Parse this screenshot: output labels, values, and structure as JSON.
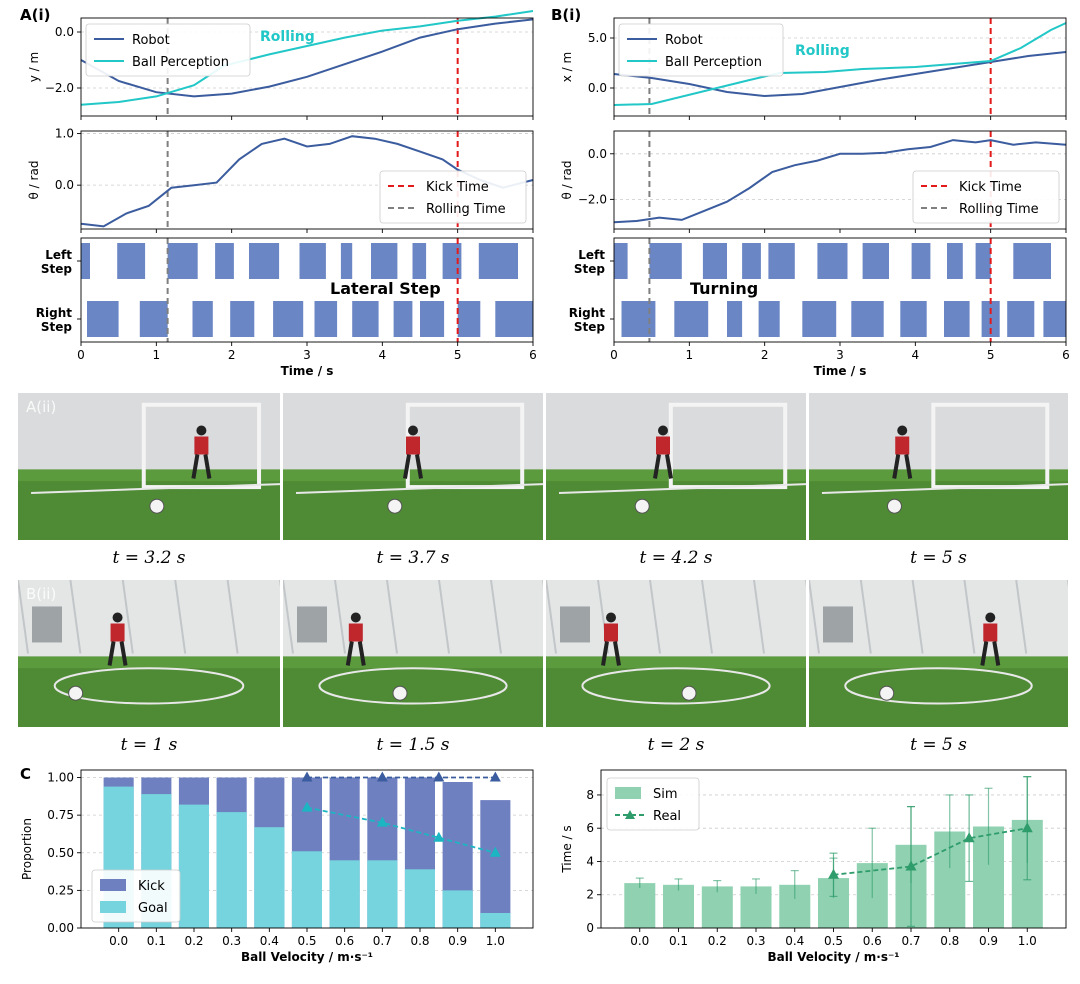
{
  "panels": {
    "a_i": "A(i)",
    "b_i": "B(i)",
    "a_ii": "A(ii)",
    "b_ii": "B(ii)",
    "c": "C"
  },
  "legend": {
    "robot": "Robot",
    "ball": "Ball Perception",
    "kick": "Kick Time",
    "rolling_time": "Rolling Time",
    "rolling_text": "Rolling"
  },
  "colors": {
    "robot": "#3b5c9e",
    "ball": "#22c7c7",
    "kick": "#e31a1c",
    "rolling": "#7f7f7f",
    "step": "#6b86c4",
    "kick_bar": "#6f80c0",
    "goal_bar": "#75d4de",
    "goal_line": "#1cb5c2",
    "kick_line": "#3b5c9e",
    "sim": "#8fd1b1",
    "real": "#2f9c6b"
  },
  "photo_captions": {
    "a": [
      "t = 3.2 s",
      "t = 3.7 s",
      "t = 4.2 s",
      "t = 5 s"
    ],
    "b": [
      "t = 1 s",
      "t = 1.5 s",
      "t = 2 s",
      "t = 5 s"
    ]
  },
  "chart_data": [
    {
      "id": "A_i_top",
      "type": "line",
      "ylabel": "y / m",
      "xlim": [
        0,
        6
      ],
      "ylim": [
        -3.0,
        0.5
      ],
      "yticks": [
        -2.0,
        0.0
      ],
      "ytick_labels": [
        "−2.0",
        "0.0"
      ],
      "annotation": "Rolling",
      "kick_time": 5,
      "rolling_time": 1.15,
      "series": [
        {
          "name": "Robot",
          "x": [
            0,
            0.5,
            1.0,
            1.5,
            2.0,
            2.5,
            3.0,
            3.5,
            4.0,
            4.5,
            5.0,
            5.5,
            6.0
          ],
          "y": [
            -1.0,
            -1.75,
            -2.15,
            -2.3,
            -2.2,
            -1.95,
            -1.6,
            -1.15,
            -0.7,
            -0.2,
            0.1,
            0.3,
            0.45
          ]
        },
        {
          "name": "Ball Perception",
          "x": [
            0,
            0.5,
            1.0,
            1.5,
            1.9,
            2.5,
            3.0,
            3.5,
            4.0,
            4.5,
            5.0,
            5.5,
            6.0
          ],
          "y": [
            -2.6,
            -2.5,
            -2.3,
            -1.9,
            -1.2,
            -0.8,
            -0.5,
            -0.2,
            0.05,
            0.2,
            0.4,
            0.55,
            0.75
          ]
        }
      ]
    },
    {
      "id": "A_i_mid",
      "type": "line",
      "ylabel": "θ / rad",
      "xlim": [
        0,
        6
      ],
      "ylim": [
        -0.85,
        1.05
      ],
      "yticks": [
        0.0,
        1.0
      ],
      "ytick_labels": [
        "0.0",
        "1.0"
      ],
      "kick_time": 5,
      "rolling_time": 1.15,
      "series": [
        {
          "name": "Robot",
          "x": [
            0,
            0.3,
            0.6,
            0.9,
            1.2,
            1.5,
            1.8,
            2.1,
            2.4,
            2.7,
            3.0,
            3.3,
            3.6,
            3.9,
            4.2,
            4.5,
            4.8,
            5.0,
            5.3,
            5.6,
            6.0
          ],
          "y": [
            -0.75,
            -0.8,
            -0.55,
            -0.4,
            -0.05,
            0.0,
            0.05,
            0.5,
            0.8,
            0.9,
            0.75,
            0.8,
            0.95,
            0.9,
            0.8,
            0.65,
            0.5,
            0.3,
            0.1,
            -0.05,
            0.1
          ]
        }
      ]
    },
    {
      "id": "A_i_steps",
      "type": "gantt",
      "rows": [
        "Left Step",
        "Right Step"
      ],
      "annotation": "Lateral Step",
      "xlabel": "Time / s",
      "xlim": [
        0,
        6
      ],
      "xticks": [
        0,
        1,
        2,
        3,
        4,
        5,
        6
      ],
      "kick_time": 5,
      "rolling_time": 1.15,
      "left_intervals": [
        [
          0,
          0.12
        ],
        [
          0.48,
          0.85
        ],
        [
          1.15,
          1.55
        ],
        [
          1.78,
          2.03
        ],
        [
          2.23,
          2.63
        ],
        [
          2.9,
          3.25
        ],
        [
          3.45,
          3.6
        ],
        [
          3.85,
          4.2
        ],
        [
          4.4,
          4.58
        ],
        [
          4.8,
          5.05
        ],
        [
          5.28,
          5.8
        ]
      ],
      "right_intervals": [
        [
          0.08,
          0.5
        ],
        [
          0.78,
          1.15
        ],
        [
          1.48,
          1.75
        ],
        [
          1.98,
          2.3
        ],
        [
          2.55,
          2.95
        ],
        [
          3.1,
          3.4
        ],
        [
          3.6,
          3.95
        ],
        [
          4.15,
          4.4
        ],
        [
          4.5,
          4.82
        ],
        [
          5.0,
          5.3
        ],
        [
          5.5,
          6.0
        ]
      ]
    },
    {
      "id": "B_i_top",
      "type": "line",
      "ylabel": "x / m",
      "xlim": [
        0,
        6
      ],
      "ylim": [
        -2.8,
        7.0
      ],
      "yticks": [
        0.0,
        5.0
      ],
      "ytick_labels": [
        "0.0",
        "5.0"
      ],
      "annotation": "Rolling",
      "kick_time": 5,
      "rolling_time": 0.47,
      "series": [
        {
          "name": "Robot",
          "x": [
            0,
            0.5,
            1.0,
            1.5,
            2.0,
            2.5,
            3.0,
            3.5,
            4.0,
            4.5,
            5.0,
            5.5,
            6.0
          ],
          "y": [
            1.4,
            1.0,
            0.4,
            -0.4,
            -0.8,
            -0.6,
            0.1,
            0.8,
            1.4,
            2.0,
            2.6,
            3.2,
            3.6
          ]
        },
        {
          "name": "Ball Perception",
          "x": [
            0,
            0.5,
            1.8,
            2.2,
            2.8,
            3.3,
            4.0,
            4.5,
            5.0,
            5.4,
            5.8,
            6.0
          ],
          "y": [
            -1.7,
            -1.6,
            0.8,
            1.5,
            1.6,
            1.9,
            2.1,
            2.4,
            2.7,
            4.0,
            5.8,
            6.5
          ]
        }
      ]
    },
    {
      "id": "B_i_mid",
      "type": "line",
      "ylabel": "θ / rad",
      "xlim": [
        0,
        6
      ],
      "ylim": [
        -3.3,
        1.0
      ],
      "yticks": [
        -2.0,
        0.0
      ],
      "ytick_labels": [
        "−2.0",
        "0.0"
      ],
      "kick_time": 5,
      "rolling_time": 0.47,
      "series": [
        {
          "name": "Robot",
          "x": [
            0,
            0.3,
            0.6,
            0.9,
            1.2,
            1.5,
            1.8,
            2.1,
            2.4,
            2.7,
            3.0,
            3.3,
            3.6,
            3.9,
            4.2,
            4.5,
            4.8,
            5.0,
            5.3,
            5.6,
            6.0
          ],
          "y": [
            -3.0,
            -2.95,
            -2.8,
            -2.9,
            -2.5,
            -2.1,
            -1.5,
            -0.8,
            -0.5,
            -0.3,
            0.0,
            0.0,
            0.05,
            0.2,
            0.3,
            0.6,
            0.5,
            0.6,
            0.4,
            0.5,
            0.4
          ]
        }
      ]
    },
    {
      "id": "B_i_steps",
      "type": "gantt",
      "rows": [
        "Left Step",
        "Right Step"
      ],
      "annotation": "Turning",
      "xlabel": "Time / s",
      "xlim": [
        0,
        6
      ],
      "xticks": [
        0,
        1,
        2,
        3,
        4,
        5,
        6
      ],
      "kick_time": 5,
      "rolling_time": 0.47,
      "left_intervals": [
        [
          0,
          0.18
        ],
        [
          0.47,
          0.9
        ],
        [
          1.18,
          1.5
        ],
        [
          1.7,
          1.95
        ],
        [
          2.05,
          2.4
        ],
        [
          2.7,
          3.1
        ],
        [
          3.3,
          3.65
        ],
        [
          3.95,
          4.2
        ],
        [
          4.42,
          4.63
        ],
        [
          4.8,
          5.0
        ],
        [
          5.3,
          5.8
        ]
      ],
      "right_intervals": [
        [
          0.1,
          0.55
        ],
        [
          0.8,
          1.25
        ],
        [
          1.5,
          1.7
        ],
        [
          1.92,
          2.2
        ],
        [
          2.5,
          2.95
        ],
        [
          3.15,
          3.58
        ],
        [
          3.8,
          4.15
        ],
        [
          4.38,
          4.72
        ],
        [
          4.88,
          5.12
        ],
        [
          5.22,
          5.58
        ],
        [
          5.7,
          6.0
        ]
      ]
    },
    {
      "id": "C_left",
      "type": "bar",
      "xlabel": "Ball Velocity / m·s⁻¹",
      "ylabel": "Proportion",
      "categories": [
        "0.0",
        "0.1",
        "0.2",
        "0.3",
        "0.4",
        "0.5",
        "0.6",
        "0.7",
        "0.8",
        "0.9",
        "1.0"
      ],
      "ylim": [
        0,
        1.05
      ],
      "yticks": [
        0.0,
        0.25,
        0.5,
        0.75,
        1.0
      ],
      "ytick_labels": [
        "0.00",
        "0.25",
        "0.50",
        "0.75",
        "1.00"
      ],
      "legend_position": "lower-left",
      "series": [
        {
          "name": "Kick",
          "values": [
            1.0,
            1.0,
            1.0,
            1.0,
            1.0,
            1.0,
            1.0,
            1.0,
            1.0,
            0.97,
            0.85
          ]
        },
        {
          "name": "Goal",
          "values": [
            0.94,
            0.89,
            0.82,
            0.77,
            0.67,
            0.51,
            0.45,
            0.45,
            0.39,
            0.25,
            0.1
          ]
        }
      ],
      "real_lines": [
        {
          "name": "Kick (real)",
          "x": [
            "0.5",
            "0.7",
            "0.85",
            "1.0"
          ],
          "y": [
            1.0,
            1.0,
            1.0,
            1.0
          ]
        },
        {
          "name": "Goal (real)",
          "x": [
            "0.5",
            "0.7",
            "0.85",
            "1.0"
          ],
          "y": [
            0.8,
            0.7,
            0.6,
            0.5
          ]
        }
      ]
    },
    {
      "id": "C_right",
      "type": "bar",
      "xlabel": "Ball Velocity / m·s⁻¹",
      "ylabel": "Time / s",
      "categories": [
        "0.0",
        "0.1",
        "0.2",
        "0.3",
        "0.4",
        "0.5",
        "0.6",
        "0.7",
        "0.8",
        "0.9",
        "1.0"
      ],
      "ylim": [
        0,
        9.5
      ],
      "yticks": [
        0,
        2,
        4,
        6,
        8
      ],
      "legend_position": "top-left",
      "series": [
        {
          "name": "Sim",
          "values": [
            2.7,
            2.6,
            2.5,
            2.5,
            2.6,
            3.0,
            3.9,
            5.0,
            5.8,
            6.1,
            6.5
          ],
          "err": [
            0.3,
            0.35,
            0.35,
            0.45,
            0.85,
            1.2,
            2.1,
            2.3,
            2.2,
            2.3,
            2.6
          ]
        },
        {
          "name": "Real",
          "x": [
            "0.5",
            "0.7",
            "0.85",
            "1.0"
          ],
          "values": [
            3.2,
            3.7,
            5.4,
            6.0
          ],
          "err": [
            1.3,
            3.6,
            2.6,
            3.1
          ]
        }
      ]
    }
  ]
}
